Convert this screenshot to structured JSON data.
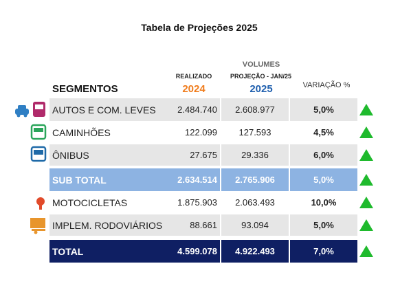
{
  "title": "Tabela de Projeções 2025",
  "header": {
    "segment": "SEGMENTOS",
    "volumes": "VOLUMES",
    "realizado": "REALIZADO",
    "realizado_year": "2024",
    "projecao": "PROJEÇÃO - JAN/25",
    "projecao_year": "2025",
    "variacao": "VARIAÇÃO %"
  },
  "table": {
    "rows": [
      [
        "AUTOS E COM. LEVES",
        "2.484.740",
        "2.608.977",
        "5,0%"
      ],
      [
        "CAMINHÕES",
        "122.099",
        "127.593",
        "4,5%"
      ],
      [
        "ÔNIBUS",
        "27.675",
        "29.336",
        "6,0%"
      ],
      [
        "SUB TOTAL",
        "2.634.514",
        "2.765.906",
        "5,0%"
      ],
      [
        "MOTOCICLETAS",
        "1.875.903",
        "2.063.493",
        "10,0%"
      ],
      [
        "IMPLEM. RODOVIÁRIOS",
        "88.661",
        "93.094",
        "5,0%"
      ],
      [
        "TOTAL",
        "4.599.078",
        "4.922.493",
        "7,0%"
      ]
    ]
  }
}
